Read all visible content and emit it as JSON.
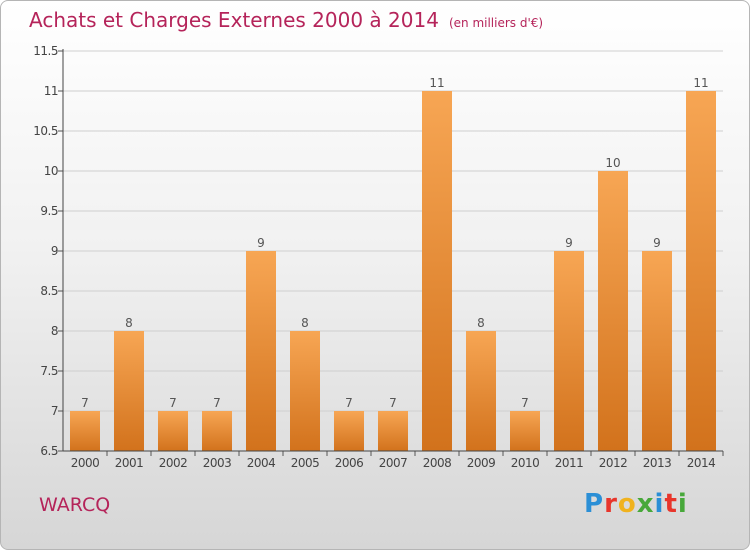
{
  "header": {
    "title": "Achats et Charges Externes 2000 à 2014",
    "subtitle": "(en milliers d'€)"
  },
  "place": "WARCQ",
  "logo": {
    "letters": [
      "P",
      "r",
      "o",
      "x",
      "i",
      "t",
      "i"
    ],
    "colors": [
      "#2b8fd6",
      "#e8352b",
      "#f0b21e",
      "#47a83a",
      "#2b8fd6",
      "#e8352b",
      "#47a83a"
    ]
  },
  "chart_data": {
    "type": "bar",
    "categories": [
      "2000",
      "2001",
      "2002",
      "2003",
      "2004",
      "2005",
      "2006",
      "2007",
      "2008",
      "2009",
      "2010",
      "2011",
      "2012",
      "2013",
      "2014"
    ],
    "values": [
      7,
      8,
      7,
      7,
      9,
      8,
      7,
      7,
      11,
      8,
      7,
      9,
      10,
      9,
      11
    ],
    "data_labels": [
      "7",
      "8",
      "7",
      "7",
      "9",
      "8",
      "7",
      "7",
      "11",
      "8",
      "7",
      "9",
      "10",
      "9",
      "11"
    ],
    "ylim": [
      6.5,
      11.5
    ],
    "yticks": [
      6.5,
      7,
      7.5,
      8,
      8.5,
      9,
      9.5,
      10,
      10.5,
      11,
      11.5
    ],
    "ytick_labels": [
      "6.5",
      "7",
      "7.5",
      "8",
      "8.5",
      "9",
      "9.5",
      "10",
      "10.5",
      "11",
      "11.5"
    ],
    "grid": true,
    "bar_color_top": "#f7a654",
    "bar_color_bottom": "#d2721c"
  }
}
